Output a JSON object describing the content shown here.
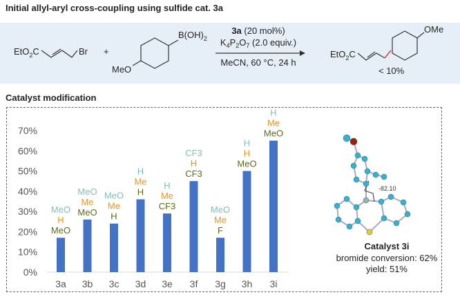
{
  "header": {
    "title": "Initial allyl-aryl cross-coupling using sulfide cat. 3a"
  },
  "scheme": {
    "reactant1": {
      "left": "EtO",
      "sub": "2",
      "right": "C",
      "br": "Br"
    },
    "plus": "+",
    "reactant2": {
      "boron": "B(OH)",
      "boron_sub": "2",
      "meo": "MeO"
    },
    "conditions": {
      "catalyst_bold": "3a",
      "catalyst_rest": " (20 mol%)",
      "base": "K4P2O7 (2.0 equiv.)",
      "base_parts": [
        "K",
        "4",
        "P",
        "2",
        "O",
        "7",
        " (2.0 equiv.)"
      ],
      "solvent": "MeCN, 60 °C, 24 h"
    },
    "product": {
      "ester": "EtO",
      "sub": "2",
      "c": "C",
      "ome": "OMe",
      "yield": "< 10%"
    }
  },
  "section_title": "Catalyst modification",
  "chart_data": {
    "type": "bar",
    "categories": [
      "3a",
      "3b",
      "3c",
      "3d",
      "3e",
      "3f",
      "3g",
      "3h",
      "3i"
    ],
    "values": [
      17,
      26,
      24,
      36,
      29,
      45,
      17,
      50,
      65
    ],
    "ylim": [
      0,
      70
    ],
    "yticks": [
      "0%",
      "10%",
      "20%",
      "30%",
      "40%",
      "50%",
      "60%",
      "70%"
    ],
    "bar_color": "#4472c4",
    "substituents": [
      [
        "MeO",
        "H",
        "MeO"
      ],
      [
        "MeO",
        "Me",
        "MeO"
      ],
      [
        "MeO",
        "Me",
        "H"
      ],
      [
        "H",
        "Me",
        "H"
      ],
      [
        "H",
        "Me",
        "CF3"
      ],
      [
        "CF3",
        "H",
        "CF3"
      ],
      [
        "MeO",
        "Me",
        "F"
      ],
      [
        "H",
        "H",
        "MeO"
      ],
      [
        "H",
        "Me",
        "MeO"
      ]
    ],
    "substituent_colors": [
      "#7fc0b8",
      "#e5962a",
      "#5e6a14"
    ]
  },
  "catalyst": {
    "name": "Catalyst 3i",
    "conversion": "bromide conversion: 62%",
    "yield": "yield: 51%",
    "dihedral": "-82.10"
  }
}
